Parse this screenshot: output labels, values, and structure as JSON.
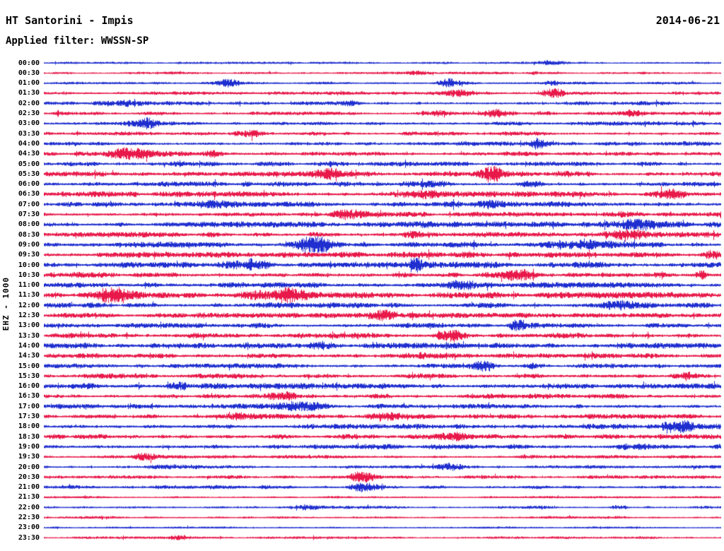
{
  "header": {
    "title": "HT Santorini - Impis",
    "date": "2014-06-21",
    "filter_label": "Applied filter: WWSSN-SP"
  },
  "y_axis_label": "EHZ - 1000",
  "colors": {
    "blue": "#1e2ecf",
    "red": "#e8194a",
    "text": "#000000",
    "background": "#ffffff"
  },
  "chart_data": {
    "type": "line",
    "subtype": "helicorder-seismogram",
    "title": "HT Santorini - Impis",
    "subtitle": "Applied filter: WWSSN-SP",
    "date": "2014-06-21",
    "station_channel_scale": "EHZ - 1000",
    "row_interval_minutes": 30,
    "x_axis": "time within each 30-minute trace line",
    "legend": "alternating blue/red trace lines, one per 30 minutes, 00:00 to 23:30",
    "rows": [
      {
        "t": "00:00",
        "color": "blue",
        "amp": 1.2,
        "events": [
          [
            0.75,
            0.02,
            1.5
          ]
        ]
      },
      {
        "t": "00:30",
        "color": "red",
        "amp": 1.4,
        "events": [
          [
            0.72,
            0.01,
            2.0
          ],
          [
            0.55,
            0.015,
            1.0
          ]
        ]
      },
      {
        "t": "01:00",
        "color": "blue",
        "amp": 1.4,
        "events": [
          [
            0.27,
            0.02,
            2.5
          ],
          [
            0.6,
            0.02,
            2.5
          ],
          [
            0.75,
            0.01,
            1.5
          ]
        ]
      },
      {
        "t": "01:30",
        "color": "red",
        "amp": 1.8,
        "events": [
          [
            0.62,
            0.025,
            2.0
          ],
          [
            0.75,
            0.015,
            2.5
          ]
        ]
      },
      {
        "t": "02:00",
        "color": "blue",
        "amp": 2.2,
        "events": [
          [
            0.1,
            0.03,
            1.5
          ],
          [
            0.45,
            0.01,
            1.0
          ]
        ]
      },
      {
        "t": "02:30",
        "color": "red",
        "amp": 1.8,
        "events": [
          [
            0.57,
            0.02,
            2.0
          ],
          [
            0.67,
            0.02,
            2.2
          ],
          [
            0.74,
            0.02,
            2.0
          ],
          [
            0.87,
            0.02,
            1.8
          ]
        ]
      },
      {
        "t": "03:00",
        "color": "blue",
        "amp": 2.2,
        "events": [
          [
            0.16,
            0.025,
            2.0
          ]
        ]
      },
      {
        "t": "03:30",
        "color": "red",
        "amp": 2.2,
        "events": [
          [
            0.3,
            0.02,
            1.2
          ],
          [
            0.6,
            0.02,
            1.2
          ]
        ]
      },
      {
        "t": "04:00",
        "color": "blue",
        "amp": 2.4,
        "events": [
          [
            0.73,
            0.01,
            1.8
          ]
        ]
      },
      {
        "t": "04:30",
        "color": "red",
        "amp": 2.6,
        "events": [
          [
            0.13,
            0.03,
            1.8
          ],
          [
            0.25,
            0.01,
            1.2
          ]
        ]
      },
      {
        "t": "05:00",
        "color": "blue",
        "amp": 2.4,
        "events": [
          [
            0.2,
            0.01,
            1.2
          ],
          [
            0.42,
            0.02,
            1.3
          ]
        ]
      },
      {
        "t": "05:30",
        "color": "red",
        "amp": 2.6,
        "events": [
          [
            0.42,
            0.02,
            1.6
          ],
          [
            0.66,
            0.015,
            3.2
          ],
          [
            0.78,
            0.02,
            1.5
          ]
        ]
      },
      {
        "t": "06:00",
        "color": "blue",
        "amp": 2.6,
        "events": [
          [
            0.55,
            0.03,
            1.6
          ],
          [
            0.72,
            0.015,
            2.6
          ],
          [
            0.3,
            0.01,
            1.3
          ]
        ]
      },
      {
        "t": "06:30",
        "color": "red",
        "amp": 3.0,
        "events": [
          [
            0.55,
            0.04,
            1.7
          ],
          [
            0.92,
            0.02,
            1.4
          ]
        ]
      },
      {
        "t": "07:00",
        "color": "blue",
        "amp": 3.0,
        "events": [
          [
            0.25,
            0.02,
            1.3
          ],
          [
            0.65,
            0.02,
            1.3
          ]
        ]
      },
      {
        "t": "07:30",
        "color": "red",
        "amp": 2.6,
        "events": [
          [
            0.45,
            0.02,
            1.3
          ],
          [
            0.85,
            0.02,
            1.3
          ]
        ]
      },
      {
        "t": "08:00",
        "color": "blue",
        "amp": 3.0,
        "events": [
          [
            0.88,
            0.03,
            1.8
          ],
          [
            0.55,
            0.02,
            1.3
          ]
        ]
      },
      {
        "t": "08:30",
        "color": "red",
        "amp": 3.0,
        "events": [
          [
            0.55,
            0.015,
            2.6
          ],
          [
            0.85,
            0.03,
            1.8
          ]
        ]
      },
      {
        "t": "09:00",
        "color": "blue",
        "amp": 3.0,
        "events": [
          [
            0.4,
            0.02,
            3.0
          ],
          [
            0.77,
            0.05,
            2.0
          ]
        ]
      },
      {
        "t": "09:30",
        "color": "red",
        "amp": 3.0,
        "events": [
          [
            0.63,
            0.02,
            1.5
          ],
          [
            0.985,
            0.012,
            3.2
          ]
        ]
      },
      {
        "t": "10:00",
        "color": "blue",
        "amp": 3.2,
        "events": [
          [
            0.3,
            0.03,
            1.6
          ],
          [
            0.55,
            0.01,
            1.4
          ]
        ]
      },
      {
        "t": "10:30",
        "color": "red",
        "amp": 3.0,
        "events": [
          [
            0.7,
            0.02,
            1.3
          ],
          [
            0.97,
            0.008,
            3.5
          ]
        ]
      },
      {
        "t": "11:00",
        "color": "blue",
        "amp": 3.0,
        "events": [
          [
            0.63,
            0.025,
            1.8
          ]
        ]
      },
      {
        "t": "11:30",
        "color": "red",
        "amp": 3.2,
        "events": [
          [
            0.1,
            0.03,
            1.7
          ],
          [
            0.35,
            0.04,
            1.6
          ]
        ]
      },
      {
        "t": "12:00",
        "color": "blue",
        "amp": 3.0,
        "events": [
          [
            0.85,
            0.02,
            1.4
          ]
        ]
      },
      {
        "t": "12:30",
        "color": "red",
        "amp": 2.6,
        "events": [
          [
            0.5,
            0.02,
            1.3
          ]
        ]
      },
      {
        "t": "13:00",
        "color": "blue",
        "amp": 2.6,
        "events": [
          [
            0.7,
            0.015,
            2.0
          ]
        ]
      },
      {
        "t": "13:30",
        "color": "red",
        "amp": 2.8,
        "events": [
          [
            0.6,
            0.02,
            2.2
          ]
        ]
      },
      {
        "t": "14:00",
        "color": "blue",
        "amp": 3.0,
        "events": [
          [
            0.4,
            0.02,
            1.3
          ]
        ]
      },
      {
        "t": "14:30",
        "color": "red",
        "amp": 2.6,
        "events": [
          [
            0.55,
            0.02,
            1.4
          ]
        ]
      },
      {
        "t": "15:00",
        "color": "blue",
        "amp": 2.6,
        "events": [
          [
            0.65,
            0.015,
            2.2
          ],
          [
            0.72,
            0.012,
            2.0
          ]
        ]
      },
      {
        "t": "15:30",
        "color": "red",
        "amp": 2.8,
        "events": [
          [
            0.95,
            0.02,
            2.0
          ]
        ]
      },
      {
        "t": "16:00",
        "color": "blue",
        "amp": 3.0,
        "events": [
          [
            0.2,
            0.02,
            1.3
          ]
        ]
      },
      {
        "t": "16:30",
        "color": "red",
        "amp": 2.6,
        "events": [
          [
            0.35,
            0.02,
            1.5
          ]
        ]
      },
      {
        "t": "17:00",
        "color": "blue",
        "amp": 2.6,
        "events": [
          [
            0.38,
            0.03,
            1.6
          ]
        ]
      },
      {
        "t": "17:30",
        "color": "red",
        "amp": 2.6,
        "events": [
          [
            0.5,
            0.02,
            1.5
          ],
          [
            0.3,
            0.02,
            1.3
          ]
        ]
      },
      {
        "t": "18:00",
        "color": "blue",
        "amp": 2.8,
        "events": [
          [
            0.93,
            0.03,
            1.8
          ]
        ]
      },
      {
        "t": "18:30",
        "color": "red",
        "amp": 2.6,
        "events": [
          [
            0.35,
            0.02,
            1.5
          ],
          [
            0.6,
            0.02,
            1.3
          ]
        ]
      },
      {
        "t": "19:00",
        "color": "blue",
        "amp": 2.8,
        "events": [
          [
            0.88,
            0.03,
            1.6
          ]
        ]
      },
      {
        "t": "19:30",
        "color": "red",
        "amp": 1.8,
        "events": [
          [
            0.15,
            0.02,
            1.5
          ],
          [
            0.72,
            0.015,
            1.8
          ]
        ]
      },
      {
        "t": "20:00",
        "color": "blue",
        "amp": 1.8,
        "events": [
          [
            0.2,
            0.03,
            1.8
          ],
          [
            0.6,
            0.02,
            1.4
          ]
        ]
      },
      {
        "t": "20:30",
        "color": "red",
        "amp": 1.8,
        "events": [
          [
            0.47,
            0.02,
            2.4
          ]
        ]
      },
      {
        "t": "21:00",
        "color": "blue",
        "amp": 2.0,
        "events": [
          [
            0.47,
            0.02,
            1.6
          ]
        ]
      },
      {
        "t": "21:30",
        "color": "red",
        "amp": 1.2,
        "events": []
      },
      {
        "t": "22:00",
        "color": "blue",
        "amp": 1.6,
        "events": [
          [
            0.38,
            0.02,
            1.6
          ],
          [
            0.85,
            0.01,
            2.2
          ]
        ]
      },
      {
        "t": "22:30",
        "color": "red",
        "amp": 1.4,
        "events": [
          [
            0.3,
            0.01,
            1.3
          ]
        ]
      },
      {
        "t": "23:00",
        "color": "blue",
        "amp": 1.1,
        "events": []
      },
      {
        "t": "23:30",
        "color": "red",
        "amp": 1.3,
        "events": [
          [
            0.2,
            0.02,
            1.8
          ]
        ]
      }
    ]
  }
}
